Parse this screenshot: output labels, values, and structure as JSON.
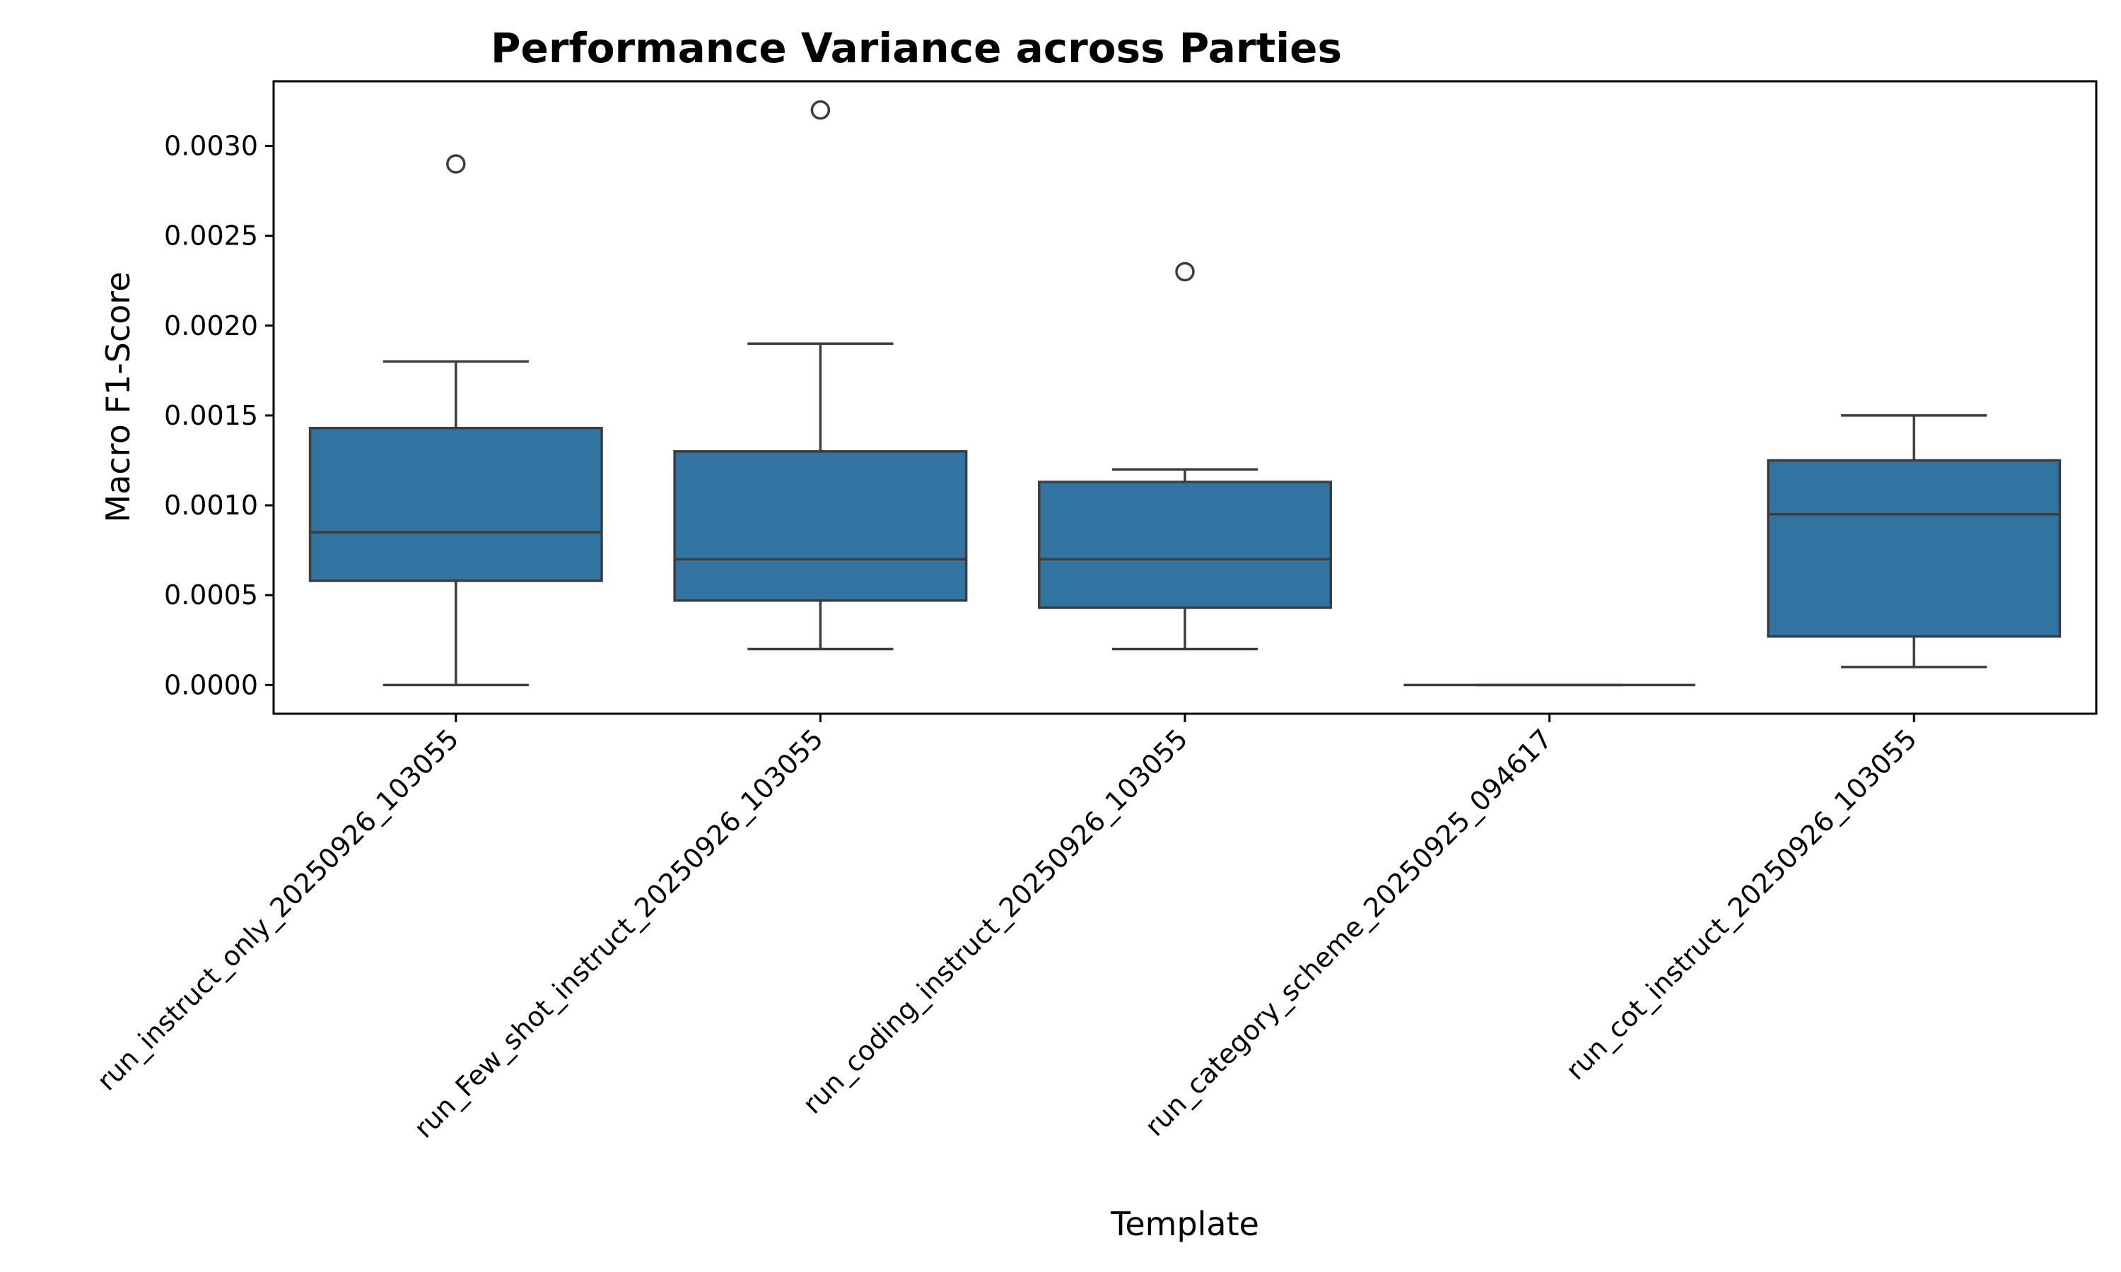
{
  "chart_data": {
    "type": "box",
    "title": "Performance Variance across Parties",
    "xlabel": "Template",
    "ylabel": "Macro F1-Score",
    "ylim": [
      -0.00016,
      0.00336
    ],
    "yticks": [
      {
        "value": 0.0,
        "label": "0.0000"
      },
      {
        "value": 0.0005,
        "label": "0.0005"
      },
      {
        "value": 0.001,
        "label": "0.0010"
      },
      {
        "value": 0.0015,
        "label": "0.0015"
      },
      {
        "value": 0.002,
        "label": "0.0020"
      },
      {
        "value": 0.0025,
        "label": "0.0025"
      },
      {
        "value": 0.003,
        "label": "0.0030"
      }
    ],
    "grid": false,
    "legend": "none",
    "box_color": "#3274a1",
    "line_color": "#3d3d3d",
    "categories": [
      "run_instruct_only_20250926_103055",
      "run_Few_shot_instruct_20250926_103055",
      "run_coding_instruct_20250926_103055",
      "run_category_scheme_20250925_094617",
      "run_cot_instruct_20250926_103055"
    ],
    "boxes": [
      {
        "whisker_low": 0.0,
        "q1": 0.00058,
        "median": 0.00085,
        "q3": 0.00143,
        "whisker_high": 0.0018,
        "outliers": [
          0.0029
        ]
      },
      {
        "whisker_low": 0.0002,
        "q1": 0.00047,
        "median": 0.0007,
        "q3": 0.0013,
        "whisker_high": 0.0019,
        "outliers": [
          0.0032
        ]
      },
      {
        "whisker_low": 0.0002,
        "q1": 0.00043,
        "median": 0.0007,
        "q3": 0.00113,
        "whisker_high": 0.0012,
        "outliers": [
          0.0023
        ]
      },
      {
        "whisker_low": 0.0,
        "q1": 0.0,
        "median": 0.0,
        "q3": 0.0,
        "whisker_high": 0.0,
        "outliers": []
      },
      {
        "whisker_low": 0.0001,
        "q1": 0.00027,
        "median": 0.00095,
        "q3": 0.00125,
        "whisker_high": 0.0015,
        "outliers": []
      }
    ]
  }
}
